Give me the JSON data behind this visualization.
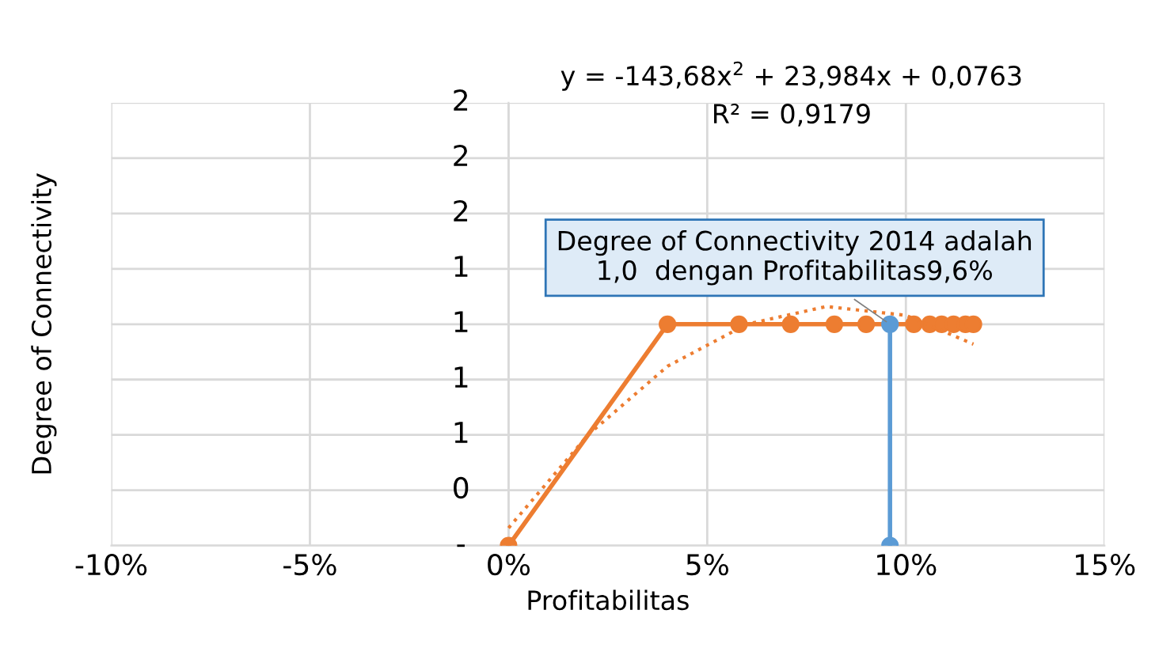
{
  "chart_data": {
    "type": "line",
    "xlabel": "Profitabilitas",
    "ylabel": "Degree of Connectivity",
    "xlim": [
      -0.1,
      0.15
    ],
    "ylim": [
      0,
      2
    ],
    "xticks": [
      {
        "value": -0.1,
        "label": "-10%"
      },
      {
        "value": -0.05,
        "label": "-5%"
      },
      {
        "value": 0,
        "label": "0%"
      },
      {
        "value": 0.05,
        "label": "5%"
      },
      {
        "value": 0.1,
        "label": "10%"
      },
      {
        "value": 0.15,
        "label": "15%"
      }
    ],
    "yticks": [
      {
        "value": 0,
        "label": "-"
      },
      {
        "value": 0.25,
        "label": "0"
      },
      {
        "value": 0.5,
        "label": "1"
      },
      {
        "value": 0.75,
        "label": "1"
      },
      {
        "value": 1,
        "label": "1"
      },
      {
        "value": 1.25,
        "label": "1"
      },
      {
        "value": 1.5,
        "label": "2"
      },
      {
        "value": 1.75,
        "label": "2"
      },
      {
        "value": 2,
        "label": "2"
      }
    ],
    "grid": true,
    "legend": false,
    "marker": "circle",
    "series": [
      {
        "color": "#ed7d31",
        "x": [
          0,
          0.04,
          0.058,
          0.071,
          0.082,
          0.09,
          0.102,
          0.106,
          0.109,
          0.112,
          0.115,
          0.117
        ],
        "values": [
          0,
          1,
          1,
          1,
          1,
          1,
          1,
          1,
          1,
          1,
          1,
          1
        ]
      },
      {
        "type": "line",
        "color": "#ed7d31",
        "line_style": "dotted",
        "marker": "none",
        "x": [
          0,
          0.02,
          0.04,
          0.06,
          0.08,
          0.1,
          0.117
        ],
        "values": [
          0.08,
          0.5,
          0.81,
          1.0,
          1.08,
          1.04,
          0.91
        ]
      },
      {
        "color": "#5b9bd5",
        "x": [
          0.096,
          0.096
        ],
        "values": [
          0,
          1
        ]
      }
    ],
    "annotations": [
      "y = -143,68x$^{2}$ + 23,984x + 0,0763",
      "R² = 0,9179",
      {
        "text": "Degree of Connectivity 2014 adalah\n1,0  dengan Profitabilitas9,6%",
        "x": 0.096,
        "y": 1
      }
    ]
  }
}
